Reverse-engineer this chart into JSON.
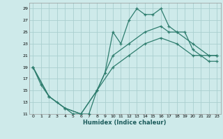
{
  "xlabel": "Humidex (Indice chaleur)",
  "bg_color": "#ceeaea",
  "grid_color": "#aacfcf",
  "line_color": "#2e7d6e",
  "xlim": [
    -0.5,
    23.5
  ],
  "ylim": [
    11,
    30
  ],
  "xticks": [
    0,
    1,
    2,
    3,
    4,
    5,
    6,
    7,
    8,
    9,
    10,
    11,
    12,
    13,
    14,
    15,
    16,
    17,
    18,
    19,
    20,
    21,
    22,
    23
  ],
  "yticks": [
    11,
    13,
    15,
    17,
    19,
    21,
    23,
    25,
    27,
    29
  ],
  "line1_x": [
    0,
    1,
    2,
    3,
    4,
    5,
    6,
    7,
    8,
    9,
    10,
    11,
    12,
    13,
    14,
    15,
    16,
    17,
    18,
    19,
    20,
    21,
    22,
    23
  ],
  "line1_y": [
    19,
    16,
    14,
    13,
    12,
    11,
    11,
    11,
    15,
    18,
    25,
    23,
    27,
    29,
    28,
    28,
    29,
    26,
    25,
    25,
    22,
    21,
    20,
    20
  ],
  "line2_x": [
    0,
    2,
    4,
    6,
    8,
    10,
    12,
    14,
    16,
    17,
    18,
    20,
    22,
    23
  ],
  "line2_y": [
    19,
    14,
    12,
    11,
    15,
    21,
    23,
    25,
    26,
    25,
    25,
    23,
    21,
    21
  ],
  "line3_x": [
    0,
    2,
    4,
    6,
    8,
    10,
    12,
    14,
    16,
    18,
    20,
    22,
    23
  ],
  "line3_y": [
    19,
    14,
    12,
    11,
    15,
    19,
    21,
    23,
    24,
    23,
    21,
    21,
    21
  ]
}
